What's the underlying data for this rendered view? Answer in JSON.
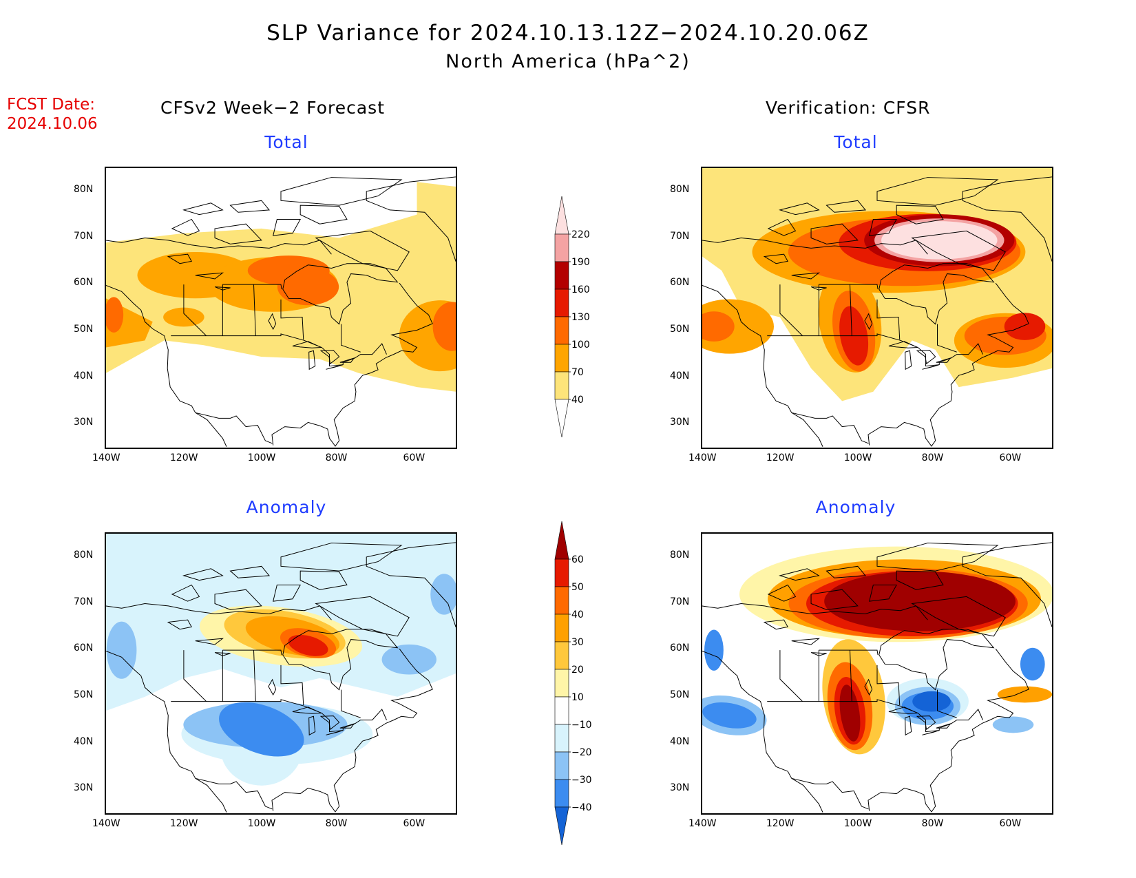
{
  "title": "SLP Variance for 2024.10.13.12Z−2024.10.20.06Z",
  "subtitle": "North America (hPa^2)",
  "fcst_date_label": "FCST Date:",
  "fcst_date_value": "2024.10.06",
  "left_column_title": "CFSv2 Week−2 Forecast",
  "right_column_title": "Verification: CFSR",
  "panel_titles": {
    "forecast_total": "Total",
    "verification_total": "Total",
    "forecast_anomaly": "Anomaly",
    "verification_anomaly": "Anomaly"
  },
  "map_axes": {
    "lat_labels": [
      "80N",
      "70N",
      "60N",
      "50N",
      "40N",
      "30N"
    ],
    "lat_values": [
      80,
      70,
      60,
      50,
      40,
      30
    ],
    "lon_labels": [
      "140W",
      "120W",
      "100W",
      "80W",
      "60W"
    ],
    "lon_values": [
      -140,
      -120,
      -100,
      -80,
      -60
    ],
    "lon_range": [
      -140,
      -50
    ],
    "lat_range": [
      25,
      85
    ]
  },
  "total_colorbar": {
    "levels": [
      "40",
      "70",
      "100",
      "130",
      "160",
      "190",
      "220"
    ],
    "colors": [
      "#ffffff",
      "#fde47a",
      "#ffa500",
      "#ff6a00",
      "#e61a00",
      "#b30000",
      "#f4a3a3",
      "#fde0e0"
    ]
  },
  "anomaly_colorbar": {
    "levels": [
      "−40",
      "−30",
      "−20",
      "−10",
      "10",
      "20",
      "30",
      "40",
      "50",
      "60"
    ],
    "colors": [
      "#1463d6",
      "#3c8cf0",
      "#8cc3f5",
      "#d8f3fc",
      "#ffffff",
      "#fff5a8",
      "#ffc83c",
      "#ffa000",
      "#ff6a00",
      "#e61a00",
      "#a00000"
    ]
  }
}
